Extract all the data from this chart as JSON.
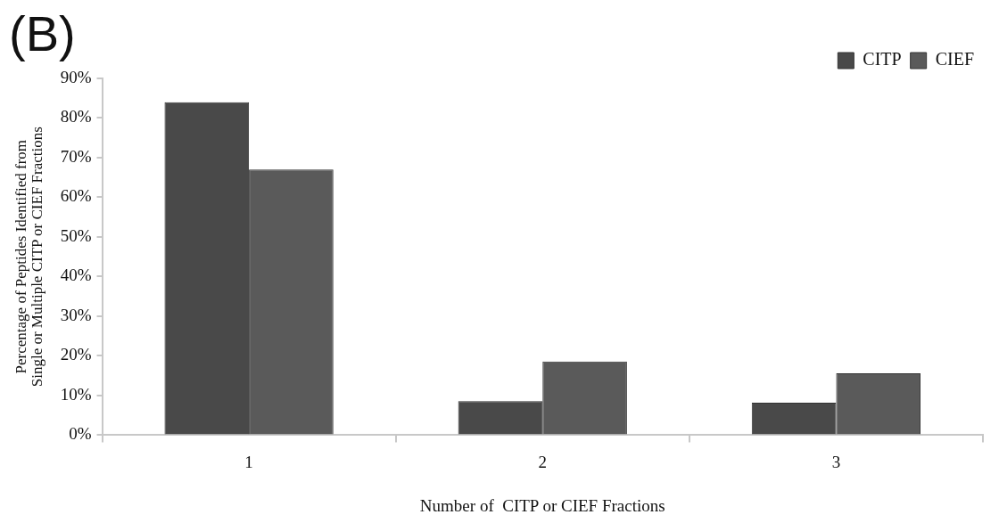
{
  "chart_data": {
    "type": "bar",
    "annotations": [
      "(B)"
    ],
    "xlabel": "Number of  CITP or CIEF Fractions",
    "ylabel": "Percentage of Peptides Identified from Single or Multiple CITP or CIEF Fractions",
    "categories": [
      "1",
      "2",
      "3"
    ],
    "series": [
      {
        "name": "CITP",
        "color": "#494949",
        "values": [
          84,
          8.6,
          8.2
        ]
      },
      {
        "name": "CIEF",
        "color": "#5a5a5a",
        "values": [
          67,
          18.6,
          15.6
        ]
      }
    ],
    "ylim": [
      0,
      90
    ],
    "yticks": [
      {
        "value": 0,
        "label": "0%"
      },
      {
        "value": 10,
        "label": "10%"
      },
      {
        "value": 20,
        "label": "20%"
      },
      {
        "value": 30,
        "label": "30%"
      },
      {
        "value": 40,
        "label": "40%"
      },
      {
        "value": 50,
        "label": "50%"
      },
      {
        "value": 60,
        "label": "60%"
      },
      {
        "value": 70,
        "label": "70%"
      },
      {
        "value": 80,
        "label": "80%"
      },
      {
        "value": 90,
        "label": "90%"
      }
    ],
    "grid": false,
    "legend": "top right"
  }
}
